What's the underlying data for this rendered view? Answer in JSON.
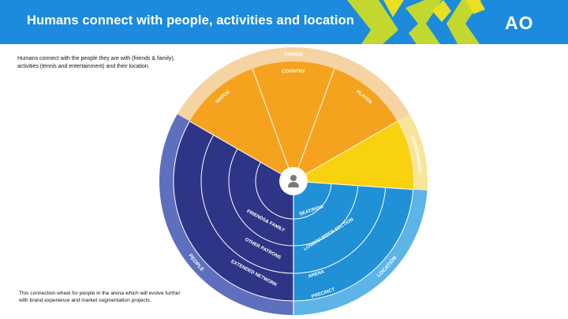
{
  "header": {
    "title": "Humans connect with people, activities and location",
    "logo_text": "AO",
    "background_color": "#1d8bdd",
    "pattern_colors": [
      "#c3d82e",
      "#e8e021",
      "#1d8bdd"
    ]
  },
  "intro_text": "Humans connect with the people they are with (friends & family), activities (tennis and entertainment) and their location.",
  "footnote_text": "This connection wheel for people in the arena which will evolve further with brand experience and market segmentation projects.",
  "wheel": {
    "center_icon": "person-icon",
    "colors": {
      "people": "#2e3586",
      "people_outer": "#5e6fbd",
      "tennis": "#f5a31f",
      "tennis_outer": "#f5d3a3",
      "entertainment": "#f8d20e",
      "entertainment_outer": "#f7e59a",
      "location": "#2090d7",
      "location_outer": "#5db4e6"
    },
    "outer_labels": {
      "tennis": "TENNIS",
      "entertainment": "ENTERTAINMENT",
      "location": "LOCATION",
      "people": "PEOPLE"
    },
    "tennis_segments": [
      "MATCH",
      "COUNTRY",
      "PLAYER"
    ],
    "people_rings": [
      "FRIENDS& FAMILY",
      "OTHER PATRONS",
      "EXTENDED NETWORK"
    ],
    "location_rings": [
      "SEAT/ROW",
      "LOWER/UPPER SECTION",
      "ARENA",
      "PRECINCT"
    ]
  }
}
